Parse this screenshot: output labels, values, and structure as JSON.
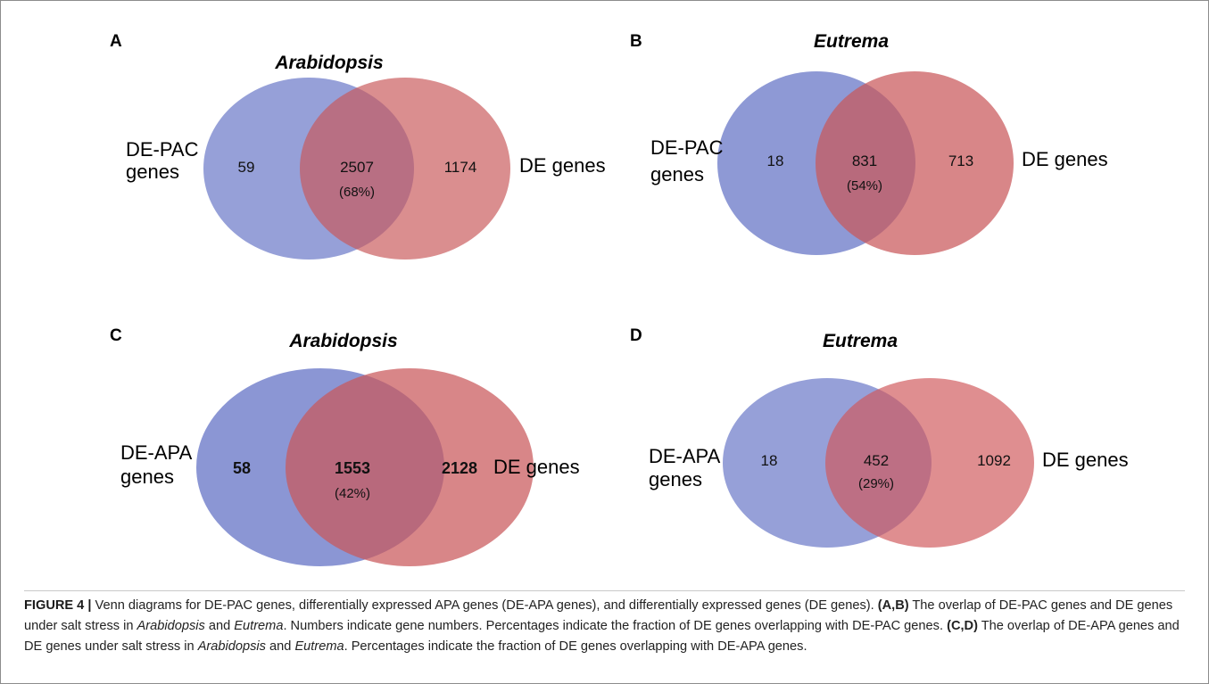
{
  "panels": [
    {
      "label": "A",
      "title": "Arabidopsis",
      "left_set": [
        "DE-PAC",
        "genes"
      ],
      "right_set": "DE genes",
      "left_only": "59",
      "overlap": "2507",
      "overlap_pct": "(68%)",
      "right_only": "1174"
    },
    {
      "label": "B",
      "title": "Eutrema",
      "left_set": [
        "DE-PAC",
        "genes"
      ],
      "right_set": "DE genes",
      "left_only": "18",
      "overlap": "831",
      "overlap_pct": "(54%)",
      "right_only": "713"
    },
    {
      "label": "C",
      "title": "Arabidopsis",
      "left_set": [
        "DE-APA",
        "genes"
      ],
      "right_set": "DE genes",
      "left_only": "58",
      "overlap": "1553",
      "overlap_pct": "(42%)",
      "right_only": "2128"
    },
    {
      "label": "D",
      "title": "Eutrema",
      "left_set": [
        "DE-APA",
        "genes"
      ],
      "right_set": "DE genes",
      "left_only": "18",
      "overlap": "452",
      "overlap_pct": "(29%)",
      "right_only": "1092"
    }
  ],
  "colors": {
    "left_circle": "#6e7cc9",
    "right_circle": "#c9585a",
    "overlap": "#8b4466"
  },
  "caption": {
    "figure_label": "FIGURE 4",
    "divider": "|",
    "text_1": "Venn diagrams for DE-PAC genes, differentially expressed APA genes (DE-APA genes), and differentially expressed genes (DE genes).",
    "ref_1": "(A,B)",
    "text_2": "The overlap of DE-PAC genes and DE genes under salt stress in",
    "species_1": "Arabidopsis",
    "and_1": "and",
    "species_2": "Eutrema",
    "text_3": ". Numbers indicate gene numbers. Percentages indicate the fraction of DE genes overlapping with DE-PAC genes.",
    "ref_2": "(C,D)",
    "text_4": "The overlap of DE-APA genes and DE genes under salt stress in",
    "species_3": "Arabidopsis",
    "and_2": "and",
    "species_4": "Eutrema",
    "text_5": ". Percentages indicate the fraction of DE genes overlapping with DE-APA genes."
  }
}
